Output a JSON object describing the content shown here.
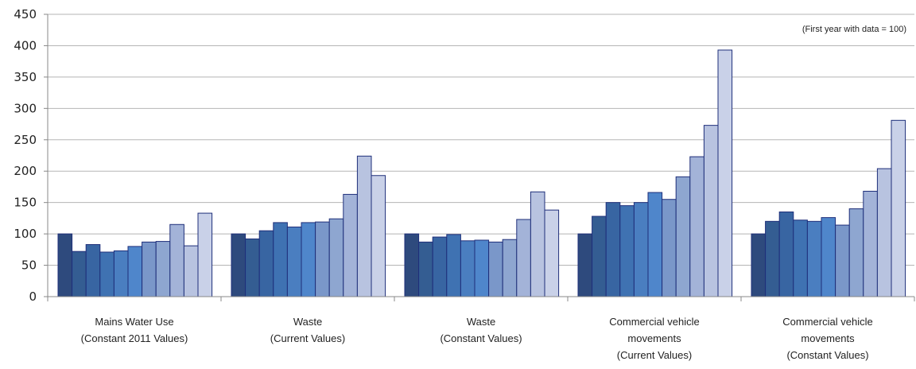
{
  "chart_data": {
    "type": "bar",
    "annotation": "(First year with data = 100)",
    "ylim": [
      0,
      450
    ],
    "yticks": [
      0,
      50,
      100,
      150,
      200,
      250,
      300,
      350,
      400,
      450
    ],
    "grid": true,
    "categories": [
      {
        "lines": [
          "Mains Water Use",
          "(Constant 2011 Values)"
        ]
      },
      {
        "lines": [
          "Waste",
          "(Current Values)"
        ]
      },
      {
        "lines": [
          "Waste",
          "(Constant Values)"
        ]
      },
      {
        "lines": [
          "Commercial vehicle",
          "movements",
          "(Current Values)"
        ]
      },
      {
        "lines": [
          "Commercial vehicle",
          "movements",
          "(Constant Values)"
        ]
      }
    ],
    "groups": [
      [
        100,
        72,
        83,
        71,
        73,
        80,
        87,
        88,
        115,
        81,
        133
      ],
      [
        100,
        92,
        105,
        118,
        111,
        118,
        119,
        124,
        163,
        224,
        193
      ],
      [
        100,
        87,
        95,
        99,
        89,
        90,
        87,
        91,
        123,
        167,
        138
      ],
      [
        100,
        128,
        150,
        145,
        150,
        166,
        155,
        191,
        223,
        273,
        393
      ],
      [
        100,
        120,
        135,
        122,
        120,
        126,
        114,
        140,
        168,
        204,
        281
      ]
    ],
    "bar_colors": [
      "#2e4a7d",
      "#345d92",
      "#3865a2",
      "#3f72b2",
      "#4a7ec0",
      "#4f86cb",
      "#7a97c9",
      "#8ea6d0",
      "#a3b3d8",
      "#b8c3e0",
      "#c9d1e8"
    ]
  }
}
